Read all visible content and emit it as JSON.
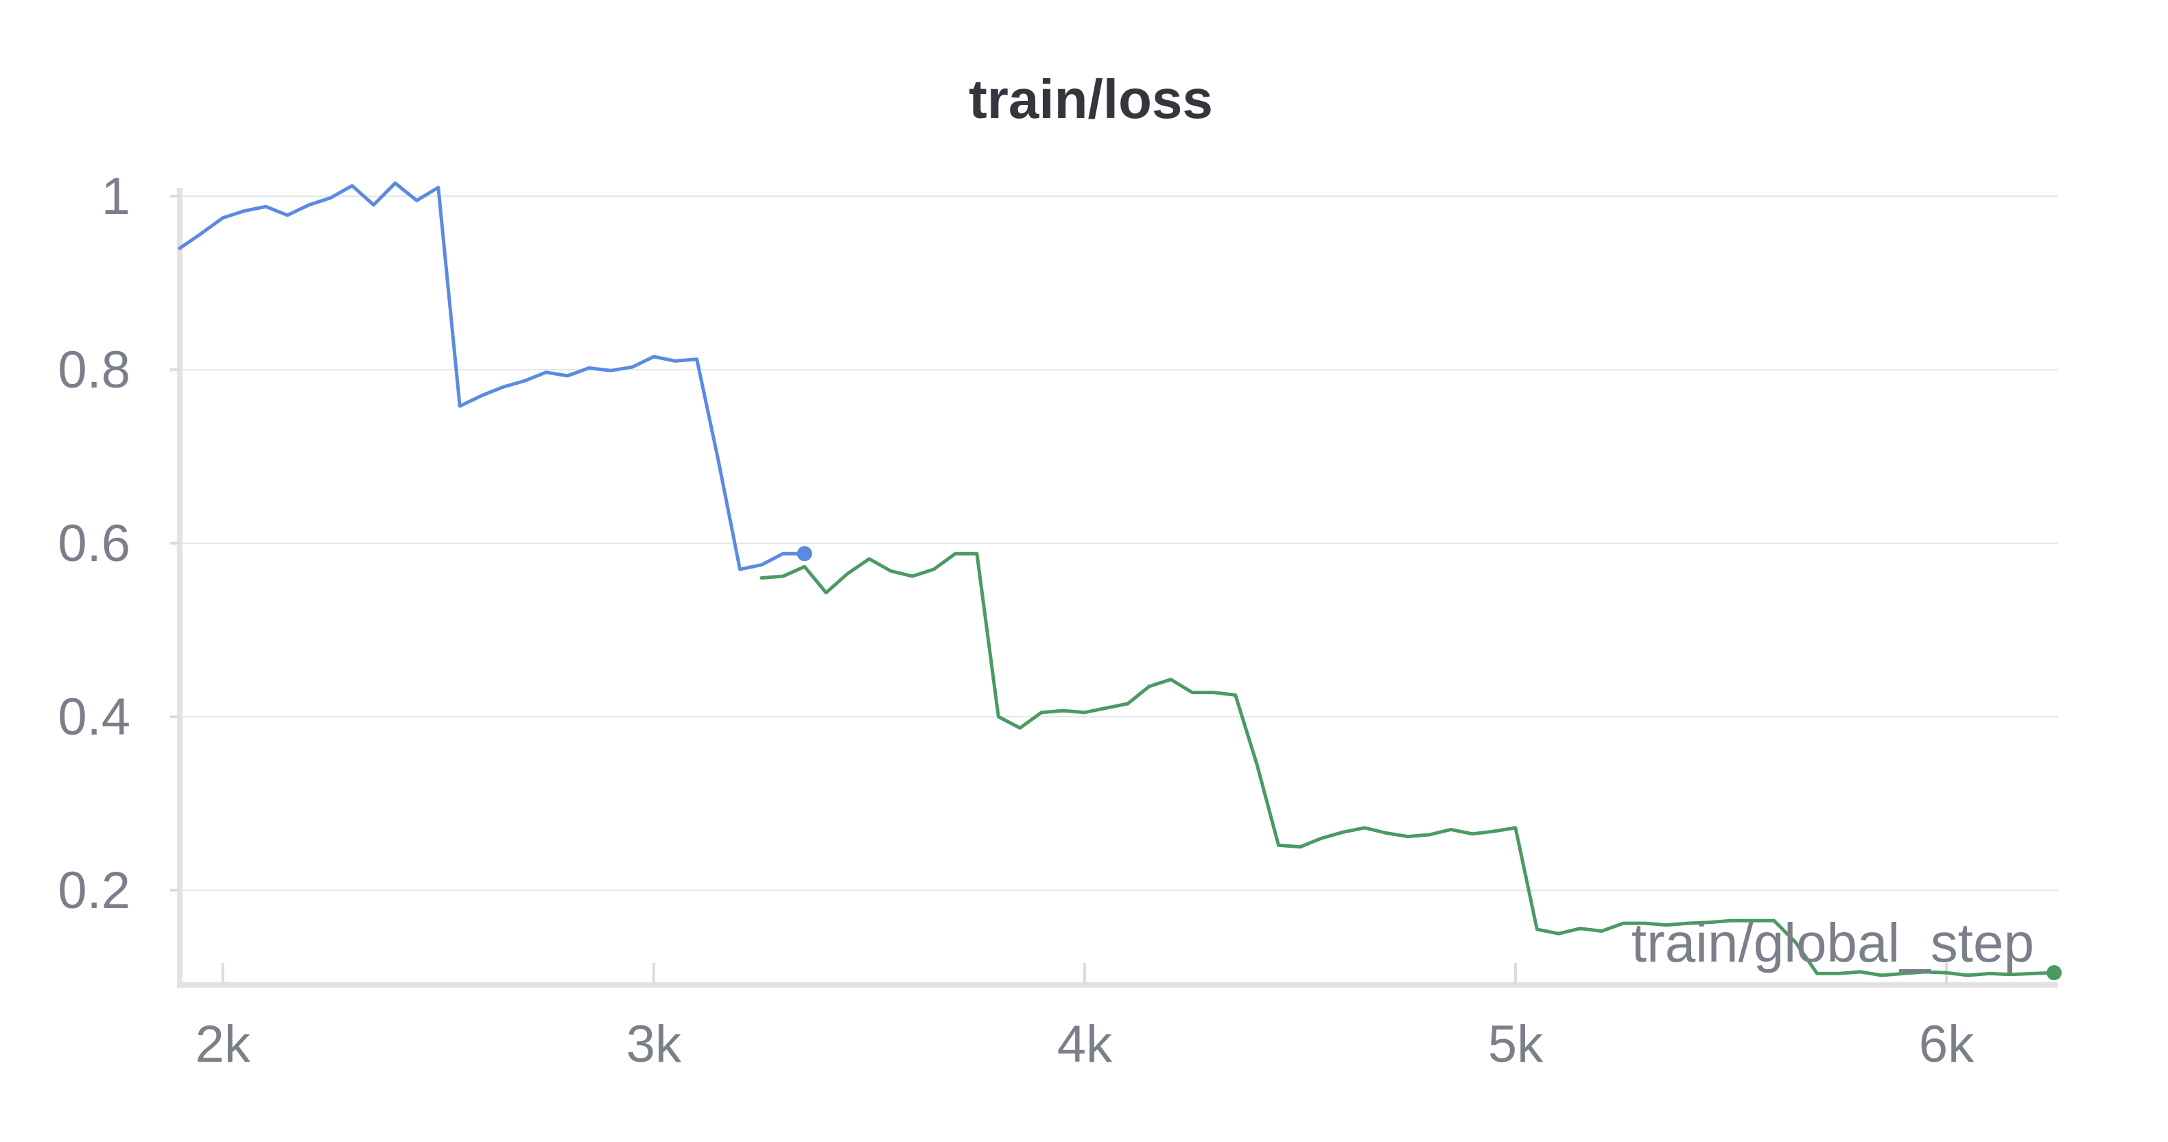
{
  "chart_data": {
    "type": "line",
    "title": "train/loss",
    "xlabel": "train/global_step",
    "ylabel": "",
    "xlim": [
      1900,
      6250
    ],
    "ylim": [
      0.1,
      1.0
    ],
    "grid": true,
    "x_ticks": [
      {
        "value": 2000,
        "label": "2k"
      },
      {
        "value": 3000,
        "label": "3k"
      },
      {
        "value": 4000,
        "label": "4k"
      },
      {
        "value": 5000,
        "label": "5k"
      },
      {
        "value": 6000,
        "label": "6k"
      }
    ],
    "y_ticks": [
      {
        "value": 0.2,
        "label": "0.2"
      },
      {
        "value": 0.4,
        "label": "0.4"
      },
      {
        "value": 0.6,
        "label": "0.6"
      },
      {
        "value": 0.8,
        "label": "0.8"
      },
      {
        "value": 1.0,
        "label": "1"
      }
    ],
    "series": [
      {
        "color": "#5b8ae2",
        "x": [
          1900,
          1950,
          2000,
          2050,
          2100,
          2150,
          2200,
          2250,
          2300,
          2350,
          2400,
          2450,
          2500,
          2550,
          2600,
          2650,
          2700,
          2750,
          2800,
          2850,
          2900,
          2950,
          3000,
          3050,
          3100,
          3150,
          3200,
          3250,
          3300,
          3350
        ],
        "y": [
          0.94,
          0.957,
          0.975,
          0.983,
          0.988,
          0.978,
          0.99,
          0.998,
          1.012,
          0.99,
          1.015,
          0.995,
          1.01,
          0.758,
          0.77,
          0.78,
          0.787,
          0.797,
          0.793,
          0.802,
          0.799,
          0.803,
          0.815,
          0.81,
          0.812,
          0.695,
          0.57,
          0.575,
          0.588,
          0.588
        ]
      },
      {
        "color": "#4b9a63",
        "x": [
          3250,
          3300,
          3350,
          3400,
          3450,
          3500,
          3550,
          3600,
          3650,
          3700,
          3750,
          3800,
          3850,
          3900,
          3950,
          4000,
          4050,
          4100,
          4150,
          4200,
          4250,
          4300,
          4350,
          4400,
          4450,
          4500,
          4550,
          4600,
          4650,
          4700,
          4750,
          4800,
          4850,
          4900,
          4950,
          5000,
          5050,
          5100,
          5150,
          5200,
          5250,
          5300,
          5350,
          5400,
          5450,
          5500,
          5550,
          5600,
          5650,
          5700,
          5750,
          5800,
          5850,
          5900,
          5950,
          6000,
          6050,
          6100,
          6150,
          6200,
          6250
        ],
        "y": [
          0.56,
          0.562,
          0.573,
          0.543,
          0.565,
          0.582,
          0.568,
          0.562,
          0.57,
          0.588,
          0.588,
          0.4,
          0.387,
          0.405,
          0.407,
          0.405,
          0.41,
          0.415,
          0.435,
          0.443,
          0.428,
          0.428,
          0.425,
          0.345,
          0.252,
          0.25,
          0.26,
          0.267,
          0.272,
          0.266,
          0.262,
          0.264,
          0.27,
          0.265,
          0.268,
          0.272,
          0.155,
          0.15,
          0.156,
          0.153,
          0.162,
          0.162,
          0.16,
          0.162,
          0.163,
          0.165,
          0.165,
          0.165,
          0.14,
          0.104,
          0.104,
          0.106,
          0.102,
          0.104,
          0.106,
          0.105,
          0.102,
          0.104,
          0.103,
          0.104,
          0.105
        ]
      }
    ]
  }
}
